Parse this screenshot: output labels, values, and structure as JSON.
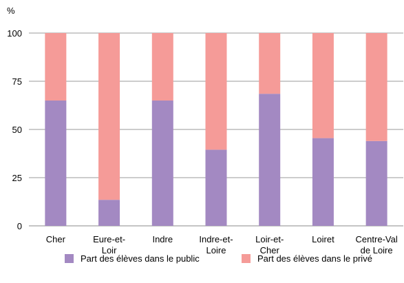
{
  "chart_data": {
    "type": "bar",
    "stacked": true,
    "y_unit": "%",
    "categories": [
      [
        "Cher"
      ],
      [
        "Eure-et-",
        "Loir"
      ],
      [
        "Indre"
      ],
      [
        "Indre-et-",
        "Loire"
      ],
      [
        "Loir-et-",
        "Cher"
      ],
      [
        "Loiret"
      ],
      [
        "Centre-Val",
        "de Loire"
      ]
    ],
    "series": [
      {
        "name": "Part des élèves dans le public",
        "color": "#a389c2",
        "values": [
          65,
          13.5,
          65,
          39.5,
          68.5,
          45.5,
          44
        ]
      },
      {
        "name": "Part des élèves dans le privé",
        "color": "#f59b98",
        "values": [
          35,
          86.5,
          35,
          60.5,
          31.5,
          54.5,
          56
        ]
      }
    ],
    "ylim": [
      0,
      100
    ],
    "yticks": [
      0,
      25,
      50,
      75,
      100
    ],
    "grid": true,
    "legend_position": "bottom"
  }
}
